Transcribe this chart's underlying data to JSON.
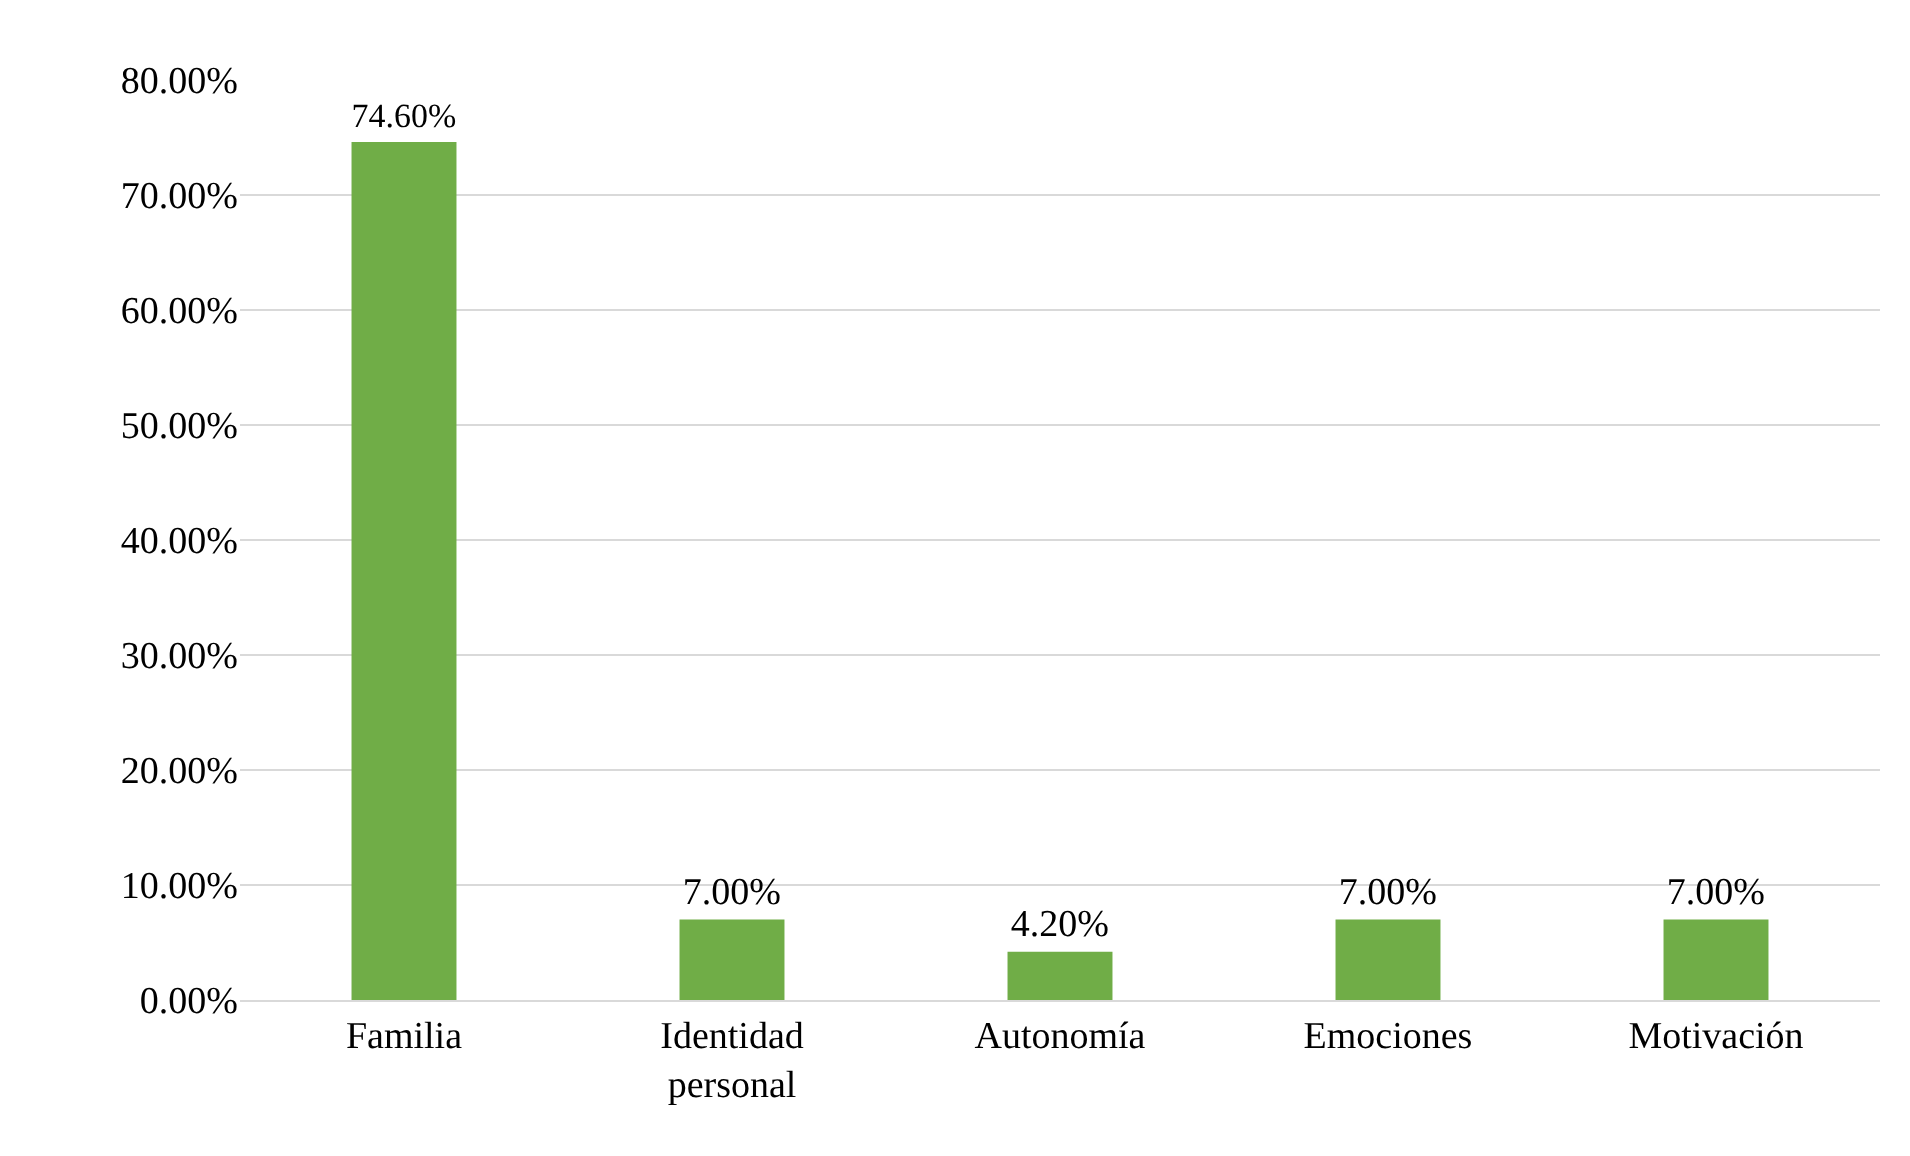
{
  "chart_data": {
    "type": "bar",
    "categories": [
      "Familia",
      "Identidad personal",
      "Autonomía",
      "Emociones",
      "Motivación"
    ],
    "values": [
      74.6,
      7.0,
      4.2,
      7.0,
      7.0
    ],
    "value_labels": [
      "74.60%",
      "7.00%",
      "4.20%",
      "7.00%",
      "7.00%"
    ],
    "color": "#70ad47",
    "ylim": [
      0,
      80
    ],
    "yticks": [
      {
        "value": 0,
        "label": "0.00%"
      },
      {
        "value": 10,
        "label": "10.00%"
      },
      {
        "value": 20,
        "label": "20.00%"
      },
      {
        "value": 30,
        "label": "30.00%"
      },
      {
        "value": 40,
        "label": "40.00%"
      },
      {
        "value": 50,
        "label": "50.00%"
      },
      {
        "value": 60,
        "label": "60.00%"
      },
      {
        "value": 70,
        "label": "70.00%"
      },
      {
        "value": 80,
        "label": "80.00%"
      }
    ],
    "grid": "y",
    "legend": false
  }
}
